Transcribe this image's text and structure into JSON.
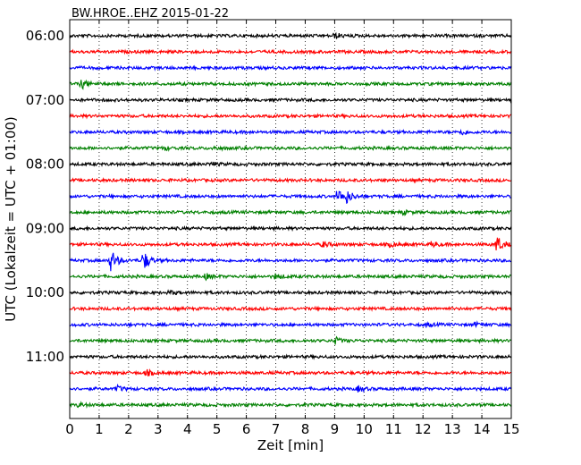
{
  "chart_data": {
    "type": "line",
    "title": "BW.HROE..EHZ 2015-01-22",
    "xlabel": "Zeit  [min]",
    "ylabel": "UTC (Lokalzeit = UTC + 01:00)",
    "xlim": [
      0,
      15
    ],
    "x_ticks": [
      "0",
      "1",
      "2",
      "3",
      "4",
      "5",
      "6",
      "7",
      "8",
      "9",
      "10",
      "11",
      "12",
      "13",
      "14",
      "15"
    ],
    "y_ticks": [
      "06:00",
      "07:00",
      "08:00",
      "09:00",
      "10:00",
      "11:00"
    ],
    "ylim_hours": [
      6.0,
      12.0
    ],
    "trace_interval_min": 15,
    "grid": "vertical dotted",
    "colors": [
      "#000000",
      "#ff0000",
      "#0000ff",
      "#008000"
    ],
    "traces": [
      {
        "start": "06:00",
        "color": "#000000",
        "events": [
          {
            "t": 9.0,
            "amp": 3
          }
        ]
      },
      {
        "start": "06:15",
        "color": "#ff0000",
        "events": []
      },
      {
        "start": "06:30",
        "color": "#0000ff",
        "events": []
      },
      {
        "start": "06:45",
        "color": "#008000",
        "events": [
          {
            "t": 0.4,
            "amp": 5
          }
        ]
      },
      {
        "start": "07:00",
        "color": "#000000",
        "events": []
      },
      {
        "start": "07:15",
        "color": "#ff0000",
        "events": []
      },
      {
        "start": "07:30",
        "color": "#0000ff",
        "events": [
          {
            "t": 13.3,
            "amp": 3
          }
        ]
      },
      {
        "start": "07:45",
        "color": "#008000",
        "events": [
          {
            "t": 3.2,
            "amp": 2
          },
          {
            "t": 4.9,
            "amp": 2
          }
        ]
      },
      {
        "start": "08:00",
        "color": "#000000",
        "events": [
          {
            "t": 4.8,
            "amp": 2
          }
        ]
      },
      {
        "start": "08:15",
        "color": "#ff0000",
        "events": []
      },
      {
        "start": "08:30",
        "color": "#0000ff",
        "events": [
          {
            "t": 9.1,
            "amp": 8
          },
          {
            "t": 9.4,
            "amp": 6
          }
        ]
      },
      {
        "start": "08:45",
        "color": "#008000",
        "events": [
          {
            "t": 11.3,
            "amp": 2
          }
        ]
      },
      {
        "start": "09:00",
        "color": "#000000",
        "events": []
      },
      {
        "start": "09:15",
        "color": "#ff0000",
        "events": [
          {
            "t": 8.6,
            "amp": 3
          },
          {
            "t": 10.9,
            "amp": 3
          },
          {
            "t": 12.3,
            "amp": 3
          },
          {
            "t": 14.5,
            "amp": 10
          }
        ]
      },
      {
        "start": "09:30",
        "color": "#0000ff",
        "events": [
          {
            "t": 1.4,
            "amp": 12
          },
          {
            "t": 2.5,
            "amp": 11
          }
        ]
      },
      {
        "start": "09:45",
        "color": "#008000",
        "events": [
          {
            "t": 4.6,
            "amp": 3
          },
          {
            "t": 7.0,
            "amp": 3
          }
        ]
      },
      {
        "start": "10:00",
        "color": "#000000",
        "events": [
          {
            "t": 3.4,
            "amp": 2
          }
        ]
      },
      {
        "start": "10:15",
        "color": "#ff0000",
        "events": []
      },
      {
        "start": "10:30",
        "color": "#0000ff",
        "events": [
          {
            "t": 12.1,
            "amp": 2
          },
          {
            "t": 13.8,
            "amp": 2
          }
        ]
      },
      {
        "start": "10:45",
        "color": "#008000",
        "events": [
          {
            "t": 9.0,
            "amp": 4
          }
        ]
      },
      {
        "start": "11:00",
        "color": "#000000",
        "events": []
      },
      {
        "start": "11:15",
        "color": "#ff0000",
        "events": [
          {
            "t": 2.6,
            "amp": 3
          }
        ]
      },
      {
        "start": "11:30",
        "color": "#0000ff",
        "events": [
          {
            "t": 1.6,
            "amp": 3
          },
          {
            "t": 9.8,
            "amp": 3
          }
        ]
      },
      {
        "start": "11:45",
        "color": "#008000",
        "events": [
          {
            "t": 0.3,
            "amp": 2
          }
        ]
      }
    ]
  }
}
